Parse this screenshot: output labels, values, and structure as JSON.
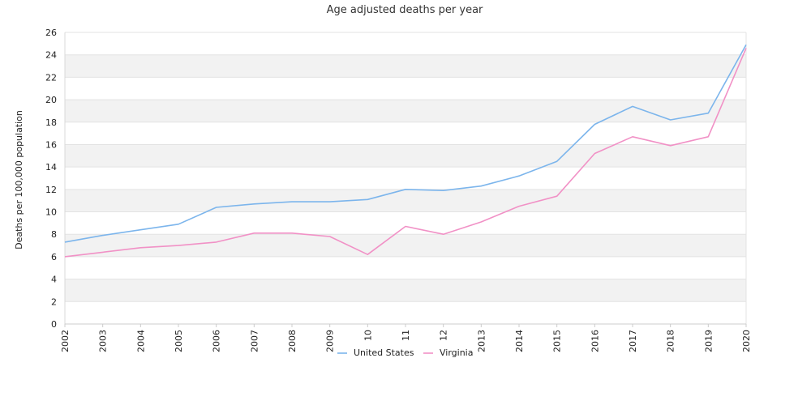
{
  "chart_data": {
    "type": "line",
    "title": "Age adjusted deaths per year",
    "xlabel": "",
    "ylabel": "Deaths per 100,000 population",
    "ylim": [
      0,
      26
    ],
    "yticks": [
      0,
      2,
      4,
      6,
      8,
      10,
      12,
      14,
      16,
      18,
      20,
      22,
      24,
      26
    ],
    "categories": [
      "2002",
      "2003",
      "2004",
      "2005",
      "2006",
      "2007",
      "2008",
      "2009",
      "10",
      "11",
      "12",
      "2013",
      "2014",
      "2015",
      "2016",
      "2017",
      "2018",
      "2019",
      "2020"
    ],
    "grid": "alternating horizontal bands",
    "legend_position": "bottom",
    "series": [
      {
        "name": "United States",
        "color": "#7cb5ec",
        "values": [
          7.3,
          7.9,
          8.4,
          8.9,
          10.4,
          10.7,
          10.9,
          10.9,
          11.1,
          12.0,
          11.9,
          12.3,
          13.2,
          14.5,
          17.8,
          19.4,
          18.2,
          18.8,
          24.9
        ]
      },
      {
        "name": "Virginia",
        "color": "#f191c6",
        "values": [
          6.0,
          6.4,
          6.8,
          7.0,
          7.3,
          8.1,
          8.1,
          7.8,
          6.2,
          8.7,
          8.0,
          9.1,
          10.5,
          11.4,
          15.2,
          16.7,
          15.9,
          16.7,
          24.6
        ]
      }
    ]
  }
}
